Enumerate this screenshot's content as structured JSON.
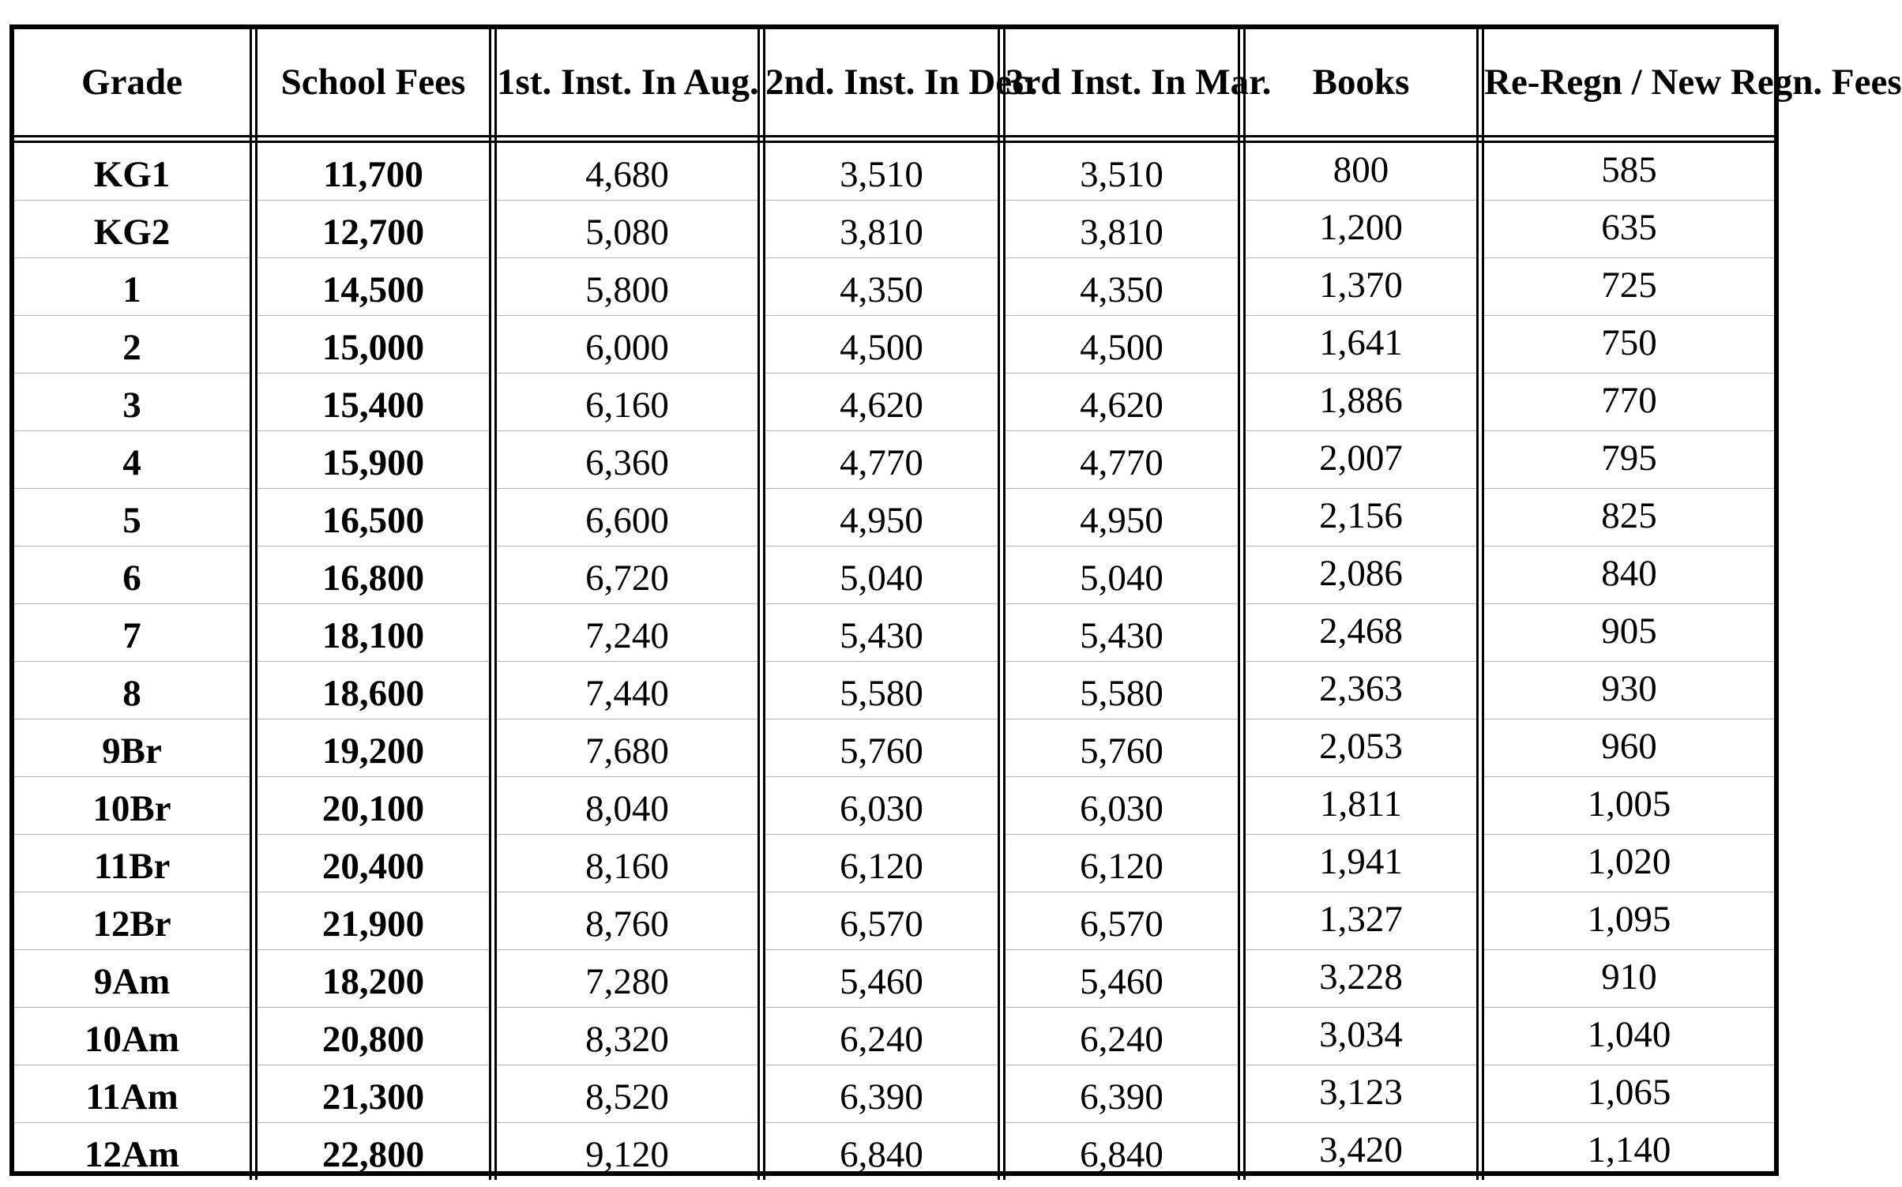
{
  "table": {
    "headers": {
      "grade": "Grade",
      "school_fees": "School Fees",
      "inst1": "1st. Inst. In Aug.",
      "inst2": "2nd. Inst. In Dec.",
      "inst3": "3rd Inst. In Mar.",
      "books": "Books",
      "regn": "Re-Regn / New Regn. Fees"
    },
    "rows": [
      {
        "grade": "KG1",
        "school_fees": "11,700",
        "inst1": "4,680",
        "inst2": "3,510",
        "inst3": "3,510",
        "books": "800",
        "regn": "585"
      },
      {
        "grade": "KG2",
        "school_fees": "12,700",
        "inst1": "5,080",
        "inst2": "3,810",
        "inst3": "3,810",
        "books": "1,200",
        "regn": "635"
      },
      {
        "grade": "1",
        "school_fees": "14,500",
        "inst1": "5,800",
        "inst2": "4,350",
        "inst3": "4,350",
        "books": "1,370",
        "regn": "725"
      },
      {
        "grade": "2",
        "school_fees": "15,000",
        "inst1": "6,000",
        "inst2": "4,500",
        "inst3": "4,500",
        "books": "1,641",
        "regn": "750"
      },
      {
        "grade": "3",
        "school_fees": "15,400",
        "inst1": "6,160",
        "inst2": "4,620",
        "inst3": "4,620",
        "books": "1,886",
        "regn": "770"
      },
      {
        "grade": "4",
        "school_fees": "15,900",
        "inst1": "6,360",
        "inst2": "4,770",
        "inst3": "4,770",
        "books": "2,007",
        "regn": "795"
      },
      {
        "grade": "5",
        "school_fees": "16,500",
        "inst1": "6,600",
        "inst2": "4,950",
        "inst3": "4,950",
        "books": "2,156",
        "regn": "825"
      },
      {
        "grade": "6",
        "school_fees": "16,800",
        "inst1": "6,720",
        "inst2": "5,040",
        "inst3": "5,040",
        "books": "2,086",
        "regn": "840"
      },
      {
        "grade": "7",
        "school_fees": "18,100",
        "inst1": "7,240",
        "inst2": "5,430",
        "inst3": "5,430",
        "books": "2,468",
        "regn": "905"
      },
      {
        "grade": "8",
        "school_fees": "18,600",
        "inst1": "7,440",
        "inst2": "5,580",
        "inst3": "5,580",
        "books": "2,363",
        "regn": "930"
      },
      {
        "grade": "9Br",
        "school_fees": "19,200",
        "inst1": "7,680",
        "inst2": "5,760",
        "inst3": "5,760",
        "books": "2,053",
        "regn": "960"
      },
      {
        "grade": "10Br",
        "school_fees": "20,100",
        "inst1": "8,040",
        "inst2": "6,030",
        "inst3": "6,030",
        "books": "1,811",
        "regn": "1,005"
      },
      {
        "grade": "11Br",
        "school_fees": "20,400",
        "inst1": "8,160",
        "inst2": "6,120",
        "inst3": "6,120",
        "books": "1,941",
        "regn": "1,020"
      },
      {
        "grade": "12Br",
        "school_fees": "21,900",
        "inst1": "8,760",
        "inst2": "6,570",
        "inst3": "6,570",
        "books": "1,327",
        "regn": "1,095"
      },
      {
        "grade": "9Am",
        "school_fees": "18,200",
        "inst1": "7,280",
        "inst2": "5,460",
        "inst3": "5,460",
        "books": "3,228",
        "regn": "910"
      },
      {
        "grade": "10Am",
        "school_fees": "20,800",
        "inst1": "8,320",
        "inst2": "6,240",
        "inst3": "6,240",
        "books": "3,034",
        "regn": "1,040"
      },
      {
        "grade": "11Am",
        "school_fees": "21,300",
        "inst1": "8,520",
        "inst2": "6,390",
        "inst3": "6,390",
        "books": "3,123",
        "regn": "1,065"
      },
      {
        "grade": "12Am",
        "school_fees": "22,800",
        "inst1": "9,120",
        "inst2": "6,840",
        "inst3": "6,840",
        "books": "3,420",
        "regn": "1,140"
      }
    ]
  }
}
